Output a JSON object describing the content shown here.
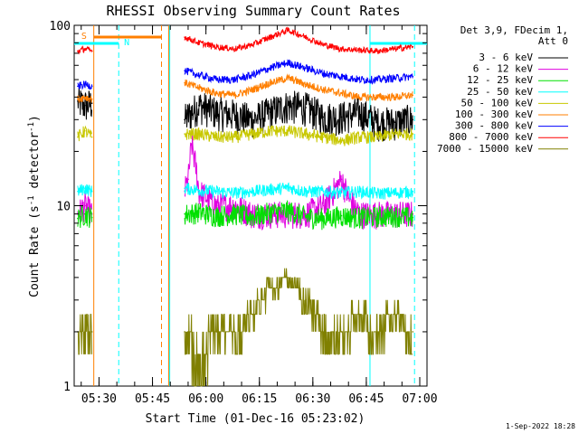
{
  "chart_data": {
    "type": "line",
    "title": "RHESSI Observing Summary Count Rates",
    "xlabel": "Start Time (01-Dec-16 05:23:02)",
    "ylabel": "Count Rate (s-1 detector-1)",
    "ylabel_parts": {
      "main": "Count Rate (s",
      "exp1": "-1",
      "mid": " detector",
      "exp2": "-1",
      "end": ")"
    },
    "y_scale": "log",
    "ylim": [
      1,
      100
    ],
    "xlim_minutes": [
      0,
      99
    ],
    "x_ticks": [
      "05:30",
      "05:45",
      "06:00",
      "06:15",
      "06:30",
      "06:45",
      "07:00"
    ],
    "y_ticks": [
      "1",
      "10",
      "100"
    ],
    "legend_header": [
      "Det 3,9, FDecim 1,",
      "Att 0"
    ],
    "legend_position": "right",
    "flags": [
      "S",
      "N"
    ],
    "footer_date": "1-Sep-2022 18:28",
    "series": [
      {
        "name": "3 - 6 keV",
        "color": "#000000",
        "x": [
          1,
          3,
          5,
          31,
          35,
          40,
          45,
          50,
          55,
          60,
          65,
          70,
          75,
          80,
          85,
          90,
          95
        ],
        "y": [
          38,
          36,
          37,
          30,
          36,
          33,
          32,
          30,
          33,
          36,
          35,
          31,
          31,
          33,
          29,
          29,
          30
        ]
      },
      {
        "name": "6 - 12 keV",
        "color": "#e000e0",
        "x": [
          1,
          3,
          5,
          31,
          32,
          33,
          35,
          40,
          45,
          50,
          55,
          60,
          65,
          70,
          74,
          75,
          77,
          80,
          85,
          90,
          95
        ],
        "y": [
          9,
          10,
          9,
          12,
          14,
          22,
          12,
          10,
          10,
          9,
          9,
          9,
          9,
          10,
          13,
          14,
          11,
          9,
          9,
          9,
          9
        ]
      },
      {
        "name": "12 - 25 keV",
        "color": "#00e000",
        "x": [
          1,
          3,
          5,
          31,
          35,
          40,
          45,
          50,
          55,
          60,
          65,
          70,
          75,
          80,
          85,
          90,
          95
        ],
        "y": [
          8.5,
          9,
          8.6,
          9,
          9.2,
          8.8,
          9,
          8.7,
          9.2,
          9.4,
          8.7,
          8.5,
          8.8,
          8.6,
          8.7,
          8.8,
          8.6
        ]
      },
      {
        "name": "25 - 50 keV",
        "color": "#00ffff",
        "x": [
          1,
          3,
          5,
          31,
          35,
          40,
          45,
          50,
          55,
          60,
          65,
          70,
          75,
          80,
          85,
          90,
          95
        ],
        "y": [
          12,
          12.5,
          12,
          12.5,
          12.2,
          12,
          11.8,
          12,
          12.3,
          12.6,
          12,
          12,
          11.8,
          12,
          11.7,
          11.8,
          12
        ]
      },
      {
        "name": "50 - 100 keV",
        "color": "#c8c800",
        "x": [
          1,
          3,
          5,
          31,
          35,
          40,
          45,
          50,
          55,
          60,
          65,
          70,
          75,
          80,
          85,
          90,
          95
        ],
        "y": [
          24,
          26,
          24,
          25,
          25,
          24,
          24,
          25,
          26,
          26,
          25,
          24,
          23,
          24,
          24,
          25,
          25
        ]
      },
      {
        "name": "100 - 300 keV",
        "color": "#ff7f00",
        "x": [
          1,
          3,
          5,
          31,
          35,
          40,
          45,
          50,
          55,
          60,
          65,
          70,
          75,
          80,
          85,
          90,
          95
        ],
        "y": [
          39,
          40,
          39,
          48,
          45,
          42,
          41,
          44,
          48,
          51,
          47,
          44,
          42,
          40,
          40,
          40,
          41
        ]
      },
      {
        "name": "300 - 800 keV",
        "color": "#0000ff",
        "x": [
          1,
          3,
          5,
          31,
          35,
          40,
          45,
          50,
          55,
          60,
          65,
          70,
          75,
          80,
          85,
          90,
          95
        ],
        "y": [
          46,
          47,
          46,
          56,
          53,
          50,
          50,
          53,
          58,
          62,
          58,
          54,
          52,
          50,
          50,
          51,
          52
        ]
      },
      {
        "name": "800 - 7000 keV",
        "color": "#ff0000",
        "x": [
          1,
          3,
          5,
          31,
          35,
          40,
          45,
          50,
          55,
          60,
          65,
          70,
          75,
          80,
          85,
          90,
          95
        ],
        "y": [
          72,
          74,
          72,
          86,
          80,
          76,
          74,
          78,
          86,
          94,
          86,
          78,
          74,
          73,
          72,
          74,
          76
        ]
      },
      {
        "name": "7000 - 15000 keV",
        "color": "#808000",
        "x": [
          1,
          3,
          5,
          31,
          35,
          40,
          45,
          50,
          55,
          60,
          65,
          70,
          75,
          80,
          85,
          90,
          95
        ],
        "y": [
          2,
          2,
          2,
          2,
          1.5,
          2,
          2,
          2.5,
          3.5,
          4,
          3,
          2,
          2,
          2.5,
          2,
          2.5,
          2
        ]
      }
    ]
  }
}
